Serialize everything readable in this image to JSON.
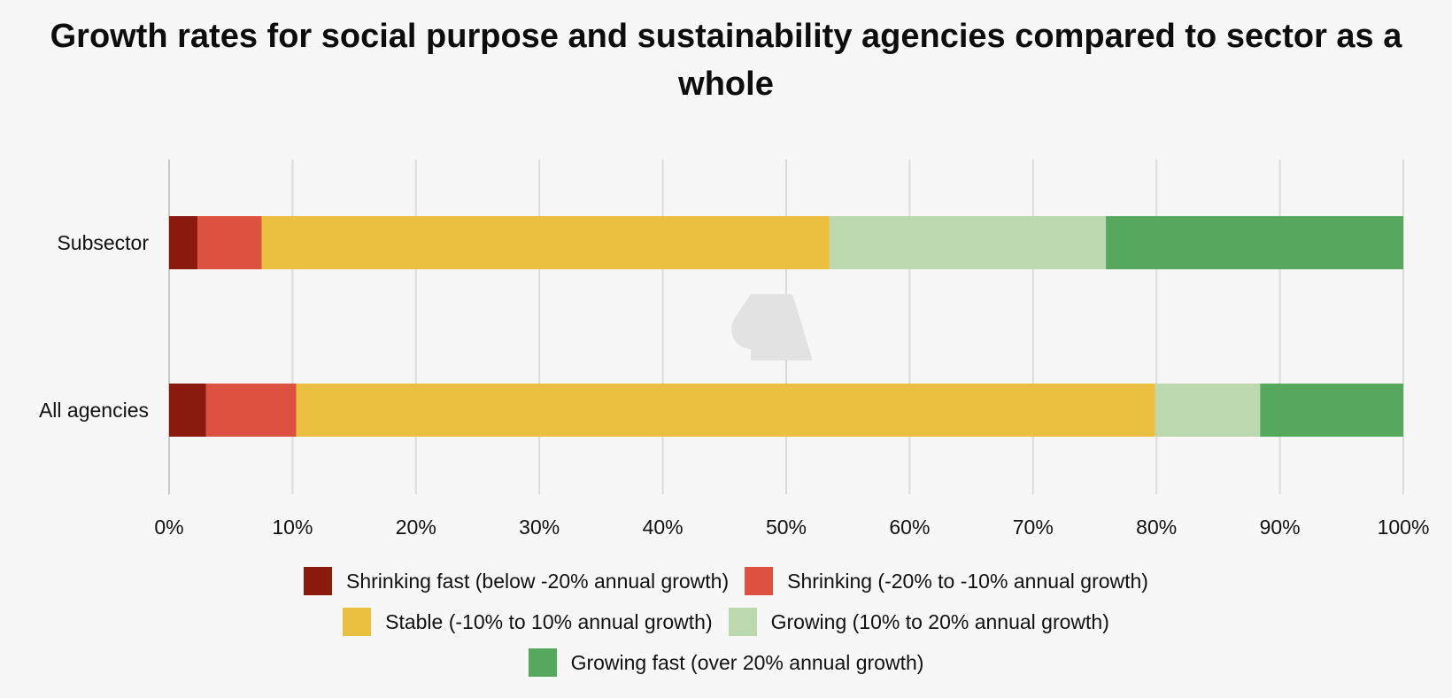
{
  "chart_data": {
    "type": "bar",
    "orientation": "horizontal",
    "stacked": true,
    "title": "Growth rates for social purpose and sustainability agencies compared to sector as a whole",
    "categories": [
      "Subsector",
      "All agencies"
    ],
    "series": [
      {
        "name": "Shrinking fast (below -20% annual growth)",
        "color": "#8b1a0e",
        "values": [
          2.3,
          3.0
        ]
      },
      {
        "name": "Shrinking (-20% to -10% annual growth)",
        "color": "#dc5140",
        "values": [
          5.2,
          7.3
        ]
      },
      {
        "name": "Stable (-10% to 10% annual growth)",
        "color": "#ebbf3f",
        "values": [
          46.0,
          69.6
        ]
      },
      {
        "name": "Growing (10% to 20% annual growth)",
        "color": "#bcd8ae",
        "values": [
          22.4,
          8.5
        ]
      },
      {
        "name": "Growing fast (over 20% annual growth)",
        "color": "#56a85d",
        "values": [
          24.1,
          11.6
        ]
      }
    ],
    "xlim": [
      0,
      100
    ],
    "x_ticks": [
      "0%",
      "10%",
      "20%",
      "30%",
      "40%",
      "50%",
      "60%",
      "70%",
      "80%",
      "90%",
      "100%"
    ],
    "grid": true,
    "legend_position": "bottom"
  }
}
